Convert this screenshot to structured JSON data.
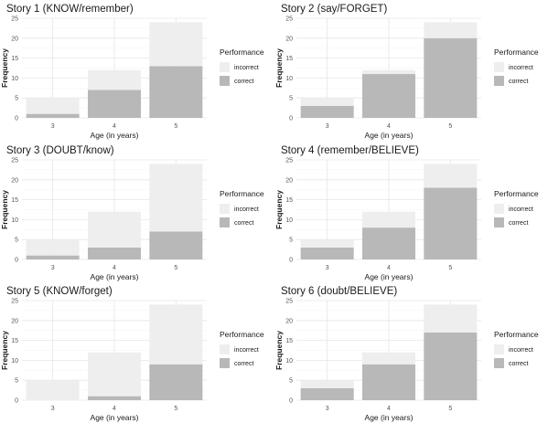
{
  "legend": {
    "title": "Performance",
    "items": [
      {
        "label": "incorrect",
        "color": "#eeeeee"
      },
      {
        "label": "correct",
        "color": "#b8b8b8"
      }
    ]
  },
  "chart_data": [
    {
      "type": "bar",
      "stacked": true,
      "title": "Story 1 (KNOW/remember)",
      "xlabel": "Age (in years)",
      "ylabel": "Frequency",
      "categories": [
        "3",
        "4",
        "5"
      ],
      "ylim": [
        0,
        25
      ],
      "yticks": [
        0,
        5,
        10,
        15,
        20,
        25
      ],
      "series": [
        {
          "name": "correct",
          "values": [
            1,
            7,
            13
          ]
        },
        {
          "name": "incorrect",
          "values": [
            4,
            5,
            11
          ]
        }
      ]
    },
    {
      "type": "bar",
      "stacked": true,
      "title": "Story 2 (say/FORGET)",
      "xlabel": "Age (in years)",
      "ylabel": "Frequency",
      "categories": [
        "3",
        "4",
        "5"
      ],
      "ylim": [
        0,
        25
      ],
      "yticks": [
        0,
        5,
        10,
        15,
        20,
        25
      ],
      "series": [
        {
          "name": "correct",
          "values": [
            3,
            11,
            20
          ]
        },
        {
          "name": "incorrect",
          "values": [
            2,
            1,
            4
          ]
        }
      ]
    },
    {
      "type": "bar",
      "stacked": true,
      "title": "Story 3 (DOUBT/know)",
      "xlabel": "Age (in years)",
      "ylabel": "Frequency",
      "categories": [
        "3",
        "4",
        "5"
      ],
      "ylim": [
        0,
        25
      ],
      "yticks": [
        0,
        5,
        10,
        15,
        20,
        25
      ],
      "series": [
        {
          "name": "correct",
          "values": [
            1,
            3,
            7
          ]
        },
        {
          "name": "incorrect",
          "values": [
            4,
            9,
            17
          ]
        }
      ]
    },
    {
      "type": "bar",
      "stacked": true,
      "title": "Story 4 (remember/BELIEVE)",
      "xlabel": "Age (in years)",
      "ylabel": "Frequency",
      "categories": [
        "3",
        "4",
        "5"
      ],
      "ylim": [
        0,
        25
      ],
      "yticks": [
        0,
        5,
        10,
        15,
        20,
        25
      ],
      "series": [
        {
          "name": "correct",
          "values": [
            3,
            8,
            18
          ]
        },
        {
          "name": "incorrect",
          "values": [
            2,
            4,
            6
          ]
        }
      ]
    },
    {
      "type": "bar",
      "stacked": true,
      "title": "Story 5 (KNOW/forget)",
      "xlabel": "Age (in years)",
      "ylabel": "Frequency",
      "categories": [
        "3",
        "4",
        "5"
      ],
      "ylim": [
        0,
        25
      ],
      "yticks": [
        0,
        5,
        10,
        15,
        20,
        25
      ],
      "series": [
        {
          "name": "correct",
          "values": [
            0,
            1,
            9
          ]
        },
        {
          "name": "incorrect",
          "values": [
            5,
            11,
            15
          ]
        }
      ]
    },
    {
      "type": "bar",
      "stacked": true,
      "title": "Story 6 (doubt/BELIEVE)",
      "xlabel": "Age (in years)",
      "ylabel": "Frequency",
      "categories": [
        "3",
        "4",
        "5"
      ],
      "ylim": [
        0,
        25
      ],
      "yticks": [
        0,
        5,
        10,
        15,
        20,
        25
      ],
      "series": [
        {
          "name": "correct",
          "values": [
            3,
            9,
            17
          ]
        },
        {
          "name": "incorrect",
          "values": [
            2,
            3,
            7
          ]
        }
      ]
    }
  ]
}
